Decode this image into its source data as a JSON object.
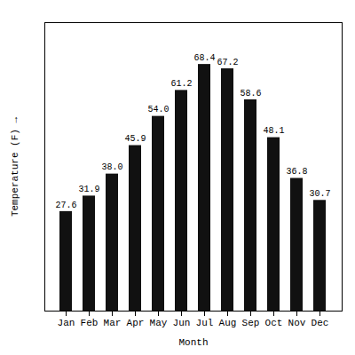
{
  "chart_data": {
    "type": "bar",
    "xlabel": "Month",
    "ylabel": "Temperature (F)",
    "categories": [
      "Jan",
      "Feb",
      "Mar",
      "Apr",
      "May",
      "Jun",
      "Jul",
      "Aug",
      "Sep",
      "Oct",
      "Nov",
      "Dec"
    ],
    "values": [
      27.6,
      31.9,
      38.0,
      45.9,
      54.0,
      61.2,
      68.4,
      67.2,
      58.6,
      48.1,
      36.8,
      30.7
    ],
    "value_labels": [
      "27.6",
      "31.9",
      "38.0",
      "45.9",
      "54.0",
      "61.2",
      "68.4",
      "67.2",
      "58.6",
      "48.1",
      "36.8",
      "30.7"
    ],
    "color": "#111111",
    "ylim": [
      0,
      80
    ],
    "yticks": [],
    "tick_labels": "x",
    "data_labels": true,
    "grid": false
  }
}
